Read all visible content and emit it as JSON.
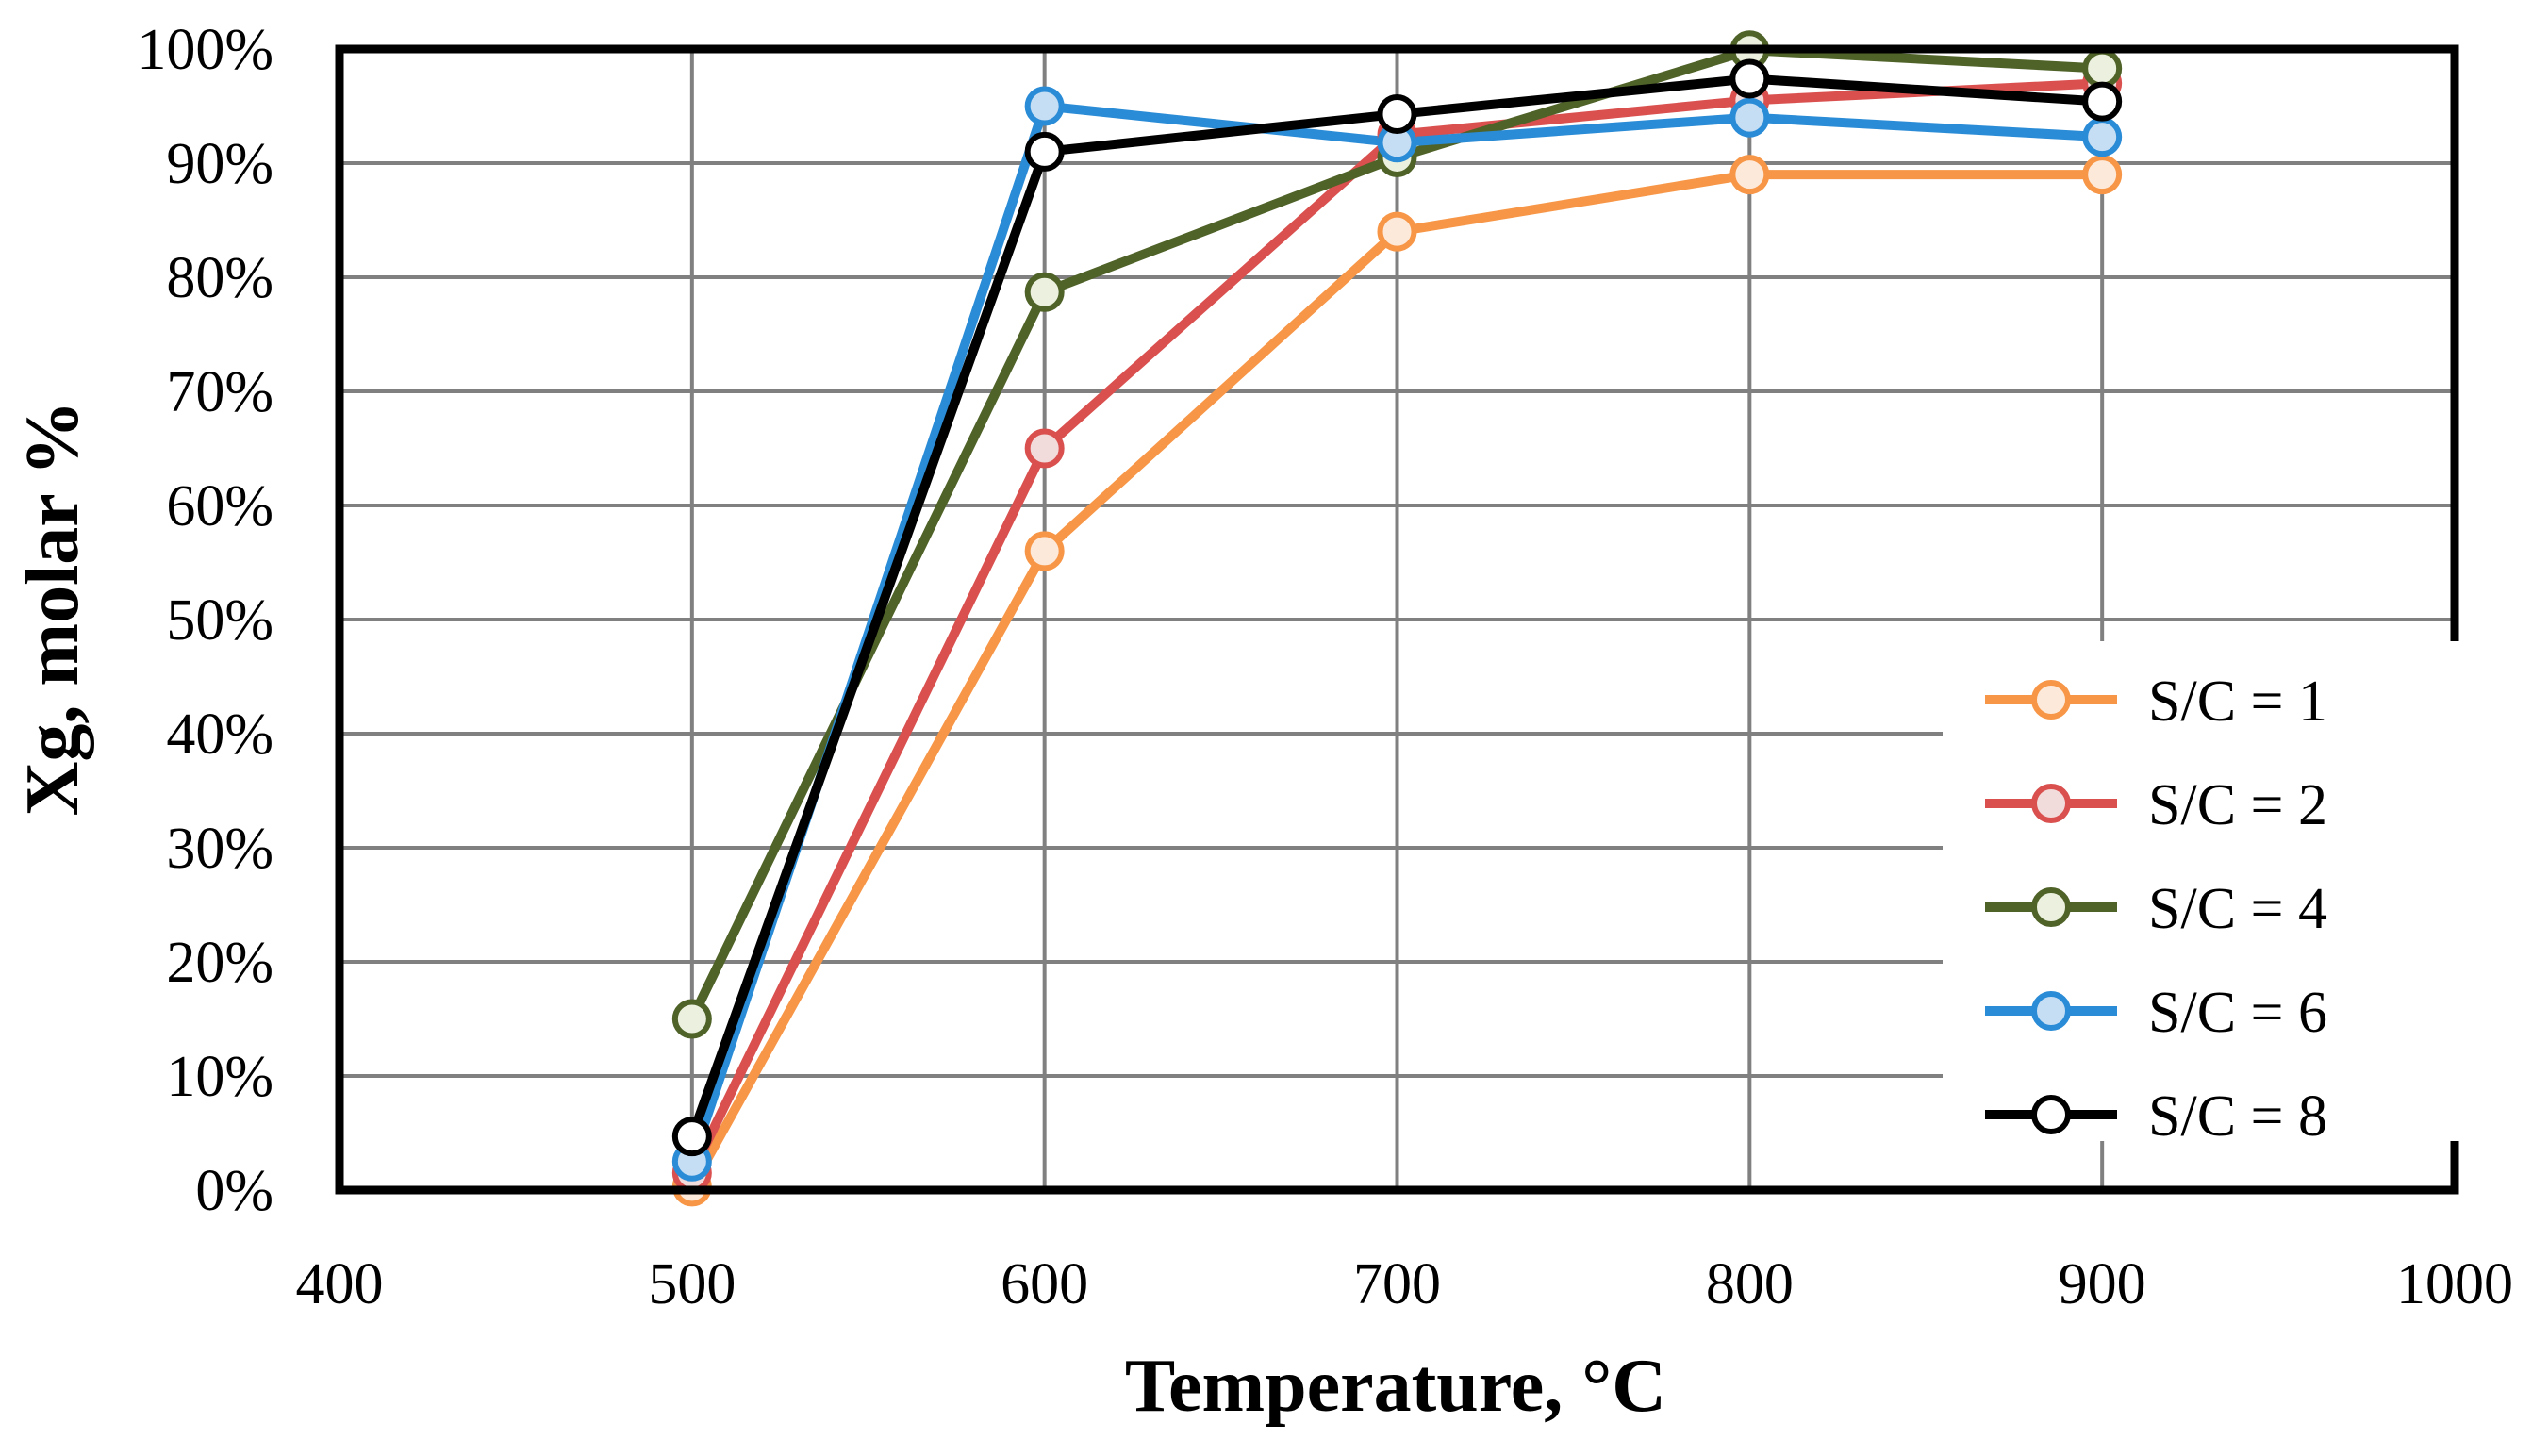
{
  "chart_data": {
    "type": "line",
    "title": "",
    "xlabel": "Temperature, °C",
    "ylabel": "Xg, molar %",
    "xlim": [
      400,
      1000
    ],
    "ylim": [
      0,
      100
    ],
    "x_ticks": [
      400,
      500,
      600,
      700,
      800,
      900,
      1000
    ],
    "x_tick_labels": [
      "400",
      "500",
      "600",
      "700",
      "800",
      "900",
      "1000"
    ],
    "y_ticks": [
      0,
      10,
      20,
      30,
      40,
      50,
      60,
      70,
      80,
      90,
      100
    ],
    "y_tick_labels": [
      "0%",
      "10%",
      "20%",
      "30%",
      "40%",
      "50%",
      "60%",
      "70%",
      "80%",
      "90%",
      "100%"
    ],
    "grid": true,
    "legend_position": "bottom-right",
    "x": [
      500,
      600,
      700,
      800,
      900
    ],
    "series": [
      {
        "name": "S/C = 1",
        "color": "#F79646",
        "marker_fill": "#FDE9D9",
        "values": [
          0.3,
          56,
          84,
          89,
          89
        ]
      },
      {
        "name": "S/C = 2",
        "color": "#D9504F",
        "marker_fill": "#F2DCDB",
        "values": [
          1.5,
          65,
          92.5,
          95.5,
          97
        ]
      },
      {
        "name": "S/C = 4",
        "color": "#4F6228",
        "marker_fill": "#EBF1DE",
        "values": [
          15,
          78.7,
          90.5,
          99.9,
          98.3
        ]
      },
      {
        "name": "S/C = 6",
        "color": "#2A8BD6",
        "marker_fill": "#C6DEF4",
        "values": [
          2.5,
          95,
          91.8,
          94,
          92.3
        ]
      },
      {
        "name": "S/C = 8",
        "color": "#000000",
        "marker_fill": "#FFFFFF",
        "values": [
          4.7,
          91,
          94.3,
          97.4,
          95.4
        ]
      }
    ]
  }
}
